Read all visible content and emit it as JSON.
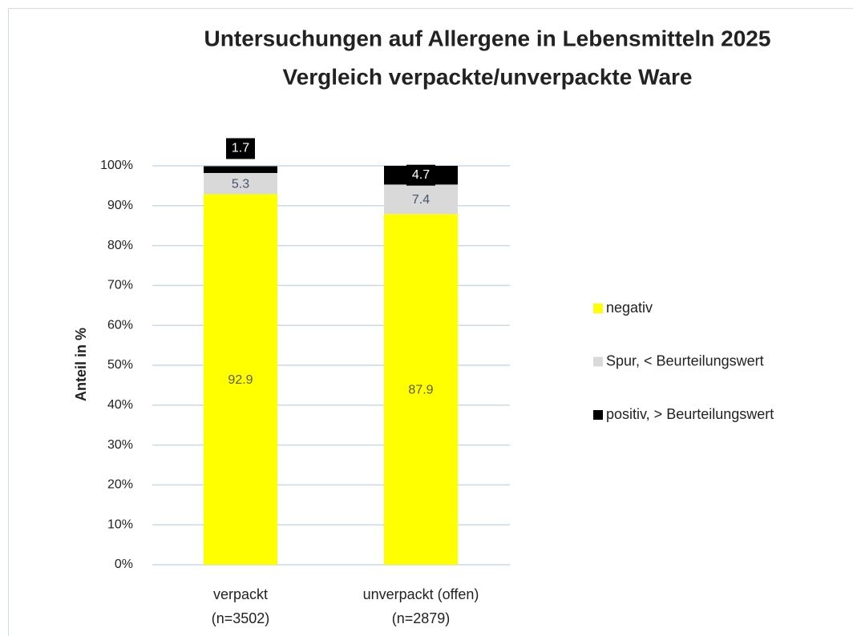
{
  "chart_data": {
    "type": "stacked_bar",
    "title": [
      "Untersuchungen auf Allergene in Lebensmitteln 2025",
      "Vergleich verpackte/unverpackte Ware"
    ],
    "y_label": "Anteil in %",
    "categories": [
      [
        "verpackt",
        "(n=3502)"
      ],
      [
        "unverpackt (offen)",
        "(n=2879)"
      ]
    ],
    "series": [
      {
        "name": "negativ",
        "color": "#ffff00",
        "label_color": "#5b5b2b",
        "values": [
          92.9,
          87.9
        ]
      },
      {
        "name": "Spur, < Beurteilungswert",
        "color": "#d9d9d9",
        "label_color": "#44546a",
        "values": [
          5.3,
          7.4
        ]
      },
      {
        "name": "positiv, > Beurteilungswert",
        "color": "#000000",
        "label_color": "#ffffff",
        "values": [
          1.7,
          4.7
        ]
      }
    ],
    "ylim": [
      0,
      100
    ],
    "yticks": [
      {
        "value": 0,
        "label": "0%"
      },
      {
        "value": 10,
        "label": "10%"
      },
      {
        "value": 20,
        "label": "20%"
      },
      {
        "value": 30,
        "label": "30%"
      },
      {
        "value": 40,
        "label": "40%"
      },
      {
        "value": 50,
        "label": "50%"
      },
      {
        "value": 60,
        "label": "60%"
      },
      {
        "value": 70,
        "label": "70%"
      },
      {
        "value": 80,
        "label": "80%"
      },
      {
        "value": 90,
        "label": "90%"
      },
      {
        "value": 100,
        "label": "100%"
      }
    ],
    "grid": true,
    "legend": "right"
  }
}
